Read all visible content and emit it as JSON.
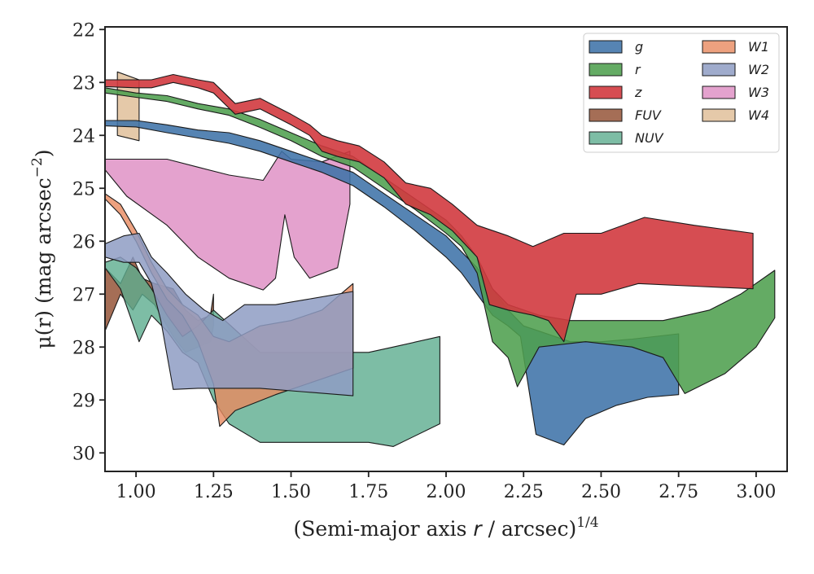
{
  "chart_data": {
    "type": "area",
    "title": "",
    "xlabel": "(Semi-major axis r / arcsec)",
    "xlabel_italic_part": "r",
    "xlabel_superscript": "1/4",
    "ylabel": "μ(r) (mag arcsec",
    "ylabel_superscript": "−2",
    "ylabel_suffix": ")",
    "xlim": [
      0.9,
      3.1
    ],
    "ylim": [
      30.35,
      21.95
    ],
    "y_inverted": true,
    "grid": false,
    "legend_position": "top-right",
    "legend_columns": 2,
    "xticks": [
      1.0,
      1.25,
      1.5,
      1.75,
      2.0,
      2.25,
      2.5,
      2.75,
      3.0
    ],
    "xtick_labels": [
      "1.00",
      "1.25",
      "1.50",
      "1.75",
      "2.00",
      "2.25",
      "2.50",
      "2.75",
      "3.00"
    ],
    "yticks": [
      22,
      23,
      24,
      25,
      26,
      27,
      28,
      29,
      30
    ],
    "ytick_labels": [
      "22",
      "23",
      "24",
      "25",
      "26",
      "27",
      "28",
      "29",
      "30"
    ],
    "series": [
      {
        "name": "FUV",
        "color": "#9b5e44",
        "opacity": 0.9,
        "upper": [
          [
            0.9,
            26.5
          ],
          [
            0.95,
            26.8
          ],
          [
            0.99,
            26.3
          ],
          [
            1.02,
            26.7
          ],
          [
            1.06,
            26.8
          ],
          [
            1.12,
            26.9
          ],
          [
            1.16,
            27.3
          ],
          [
            1.2,
            27.5
          ],
          [
            1.24,
            27.4
          ],
          [
            1.25,
            27.0
          ]
        ],
        "lower": [
          [
            0.9,
            27.7
          ],
          [
            0.95,
            27.0
          ],
          [
            0.99,
            27.3
          ],
          [
            1.02,
            27.0
          ],
          [
            1.06,
            27.2
          ],
          [
            1.12,
            27.8
          ],
          [
            1.16,
            28.1
          ],
          [
            1.2,
            28.0
          ],
          [
            1.24,
            27.9
          ],
          [
            1.25,
            27.6
          ]
        ]
      },
      {
        "name": "NUV",
        "color": "#5dad8f",
        "opacity": 0.8,
        "upper": [
          [
            0.9,
            26.4
          ],
          [
            0.95,
            26.3
          ],
          [
            1.0,
            26.5
          ],
          [
            1.05,
            26.9
          ],
          [
            1.1,
            27.4
          ],
          [
            1.15,
            27.8
          ],
          [
            1.2,
            27.6
          ],
          [
            1.25,
            27.3
          ],
          [
            1.4,
            28.1
          ],
          [
            1.5,
            28.1
          ],
          [
            1.6,
            28.1
          ],
          [
            1.75,
            28.1
          ],
          [
            1.83,
            28.0
          ],
          [
            1.98,
            27.8
          ]
        ],
        "lower": [
          [
            0.9,
            26.5
          ],
          [
            0.95,
            26.9
          ],
          [
            1.01,
            27.9
          ],
          [
            1.05,
            27.4
          ],
          [
            1.1,
            27.7
          ],
          [
            1.15,
            28.1
          ],
          [
            1.2,
            28.3
          ],
          [
            1.25,
            29.0
          ],
          [
            1.3,
            29.45
          ],
          [
            1.4,
            29.8
          ],
          [
            1.6,
            29.8
          ],
          [
            1.75,
            29.8
          ],
          [
            1.83,
            29.88
          ],
          [
            1.98,
            29.45
          ]
        ]
      },
      {
        "name": "W1",
        "color": "#e8895f",
        "opacity": 0.8,
        "upper": [
          [
            0.9,
            25.1
          ],
          [
            0.95,
            25.3
          ],
          [
            1.0,
            25.8
          ],
          [
            1.05,
            26.4
          ],
          [
            1.1,
            26.9
          ],
          [
            1.15,
            27.2
          ],
          [
            1.2,
            27.4
          ],
          [
            1.25,
            27.8
          ],
          [
            1.3,
            27.9
          ],
          [
            1.4,
            27.6
          ],
          [
            1.5,
            27.5
          ],
          [
            1.6,
            27.3
          ],
          [
            1.7,
            26.8
          ]
        ],
        "lower": [
          [
            0.9,
            25.2
          ],
          [
            0.95,
            25.5
          ],
          [
            1.0,
            26.0
          ],
          [
            1.05,
            26.6
          ],
          [
            1.1,
            27.1
          ],
          [
            1.15,
            27.4
          ],
          [
            1.2,
            27.9
          ],
          [
            1.25,
            28.7
          ],
          [
            1.27,
            29.5
          ],
          [
            1.32,
            29.2
          ],
          [
            1.45,
            28.9
          ],
          [
            1.6,
            28.6
          ],
          [
            1.7,
            28.4
          ]
        ]
      },
      {
        "name": "W2",
        "color": "#8e9cc3",
        "opacity": 0.85,
        "upper": [
          [
            0.9,
            26.05
          ],
          [
            0.96,
            25.9
          ],
          [
            1.01,
            25.85
          ],
          [
            1.05,
            26.3
          ],
          [
            1.1,
            26.6
          ],
          [
            1.16,
            27.0
          ],
          [
            1.22,
            27.3
          ],
          [
            1.28,
            27.5
          ],
          [
            1.35,
            27.2
          ],
          [
            1.45,
            27.2
          ],
          [
            1.55,
            27.1
          ],
          [
            1.7,
            26.95
          ]
        ],
        "lower": [
          [
            0.9,
            26.3
          ],
          [
            0.96,
            26.4
          ],
          [
            1.01,
            26.4
          ],
          [
            1.05,
            26.8
          ],
          [
            1.08,
            27.5
          ],
          [
            1.12,
            28.8
          ],
          [
            1.2,
            28.78
          ],
          [
            1.4,
            28.78
          ],
          [
            1.55,
            28.85
          ],
          [
            1.7,
            28.92
          ]
        ]
      },
      {
        "name": "W3",
        "color": "#dd8bc2",
        "opacity": 0.8,
        "upper": [
          [
            0.9,
            24.45
          ],
          [
            1.1,
            24.45
          ],
          [
            1.2,
            24.6
          ],
          [
            1.3,
            24.75
          ],
          [
            1.41,
            24.85
          ],
          [
            1.47,
            24.3
          ],
          [
            1.5,
            24.45
          ],
          [
            1.6,
            24.5
          ],
          [
            1.69,
            24.3
          ]
        ],
        "lower": [
          [
            0.9,
            24.65
          ],
          [
            0.97,
            25.15
          ],
          [
            1.1,
            25.7
          ],
          [
            1.2,
            26.3
          ],
          [
            1.3,
            26.7
          ],
          [
            1.41,
            26.92
          ],
          [
            1.45,
            26.7
          ],
          [
            1.48,
            25.5
          ],
          [
            1.51,
            26.3
          ],
          [
            1.56,
            26.7
          ],
          [
            1.65,
            26.5
          ],
          [
            1.69,
            25.3
          ]
        ]
      },
      {
        "name": "W4",
        "color": "#e0c09a",
        "opacity": 0.85,
        "upper": [
          [
            0.94,
            22.8
          ],
          [
            1.01,
            22.95
          ]
        ],
        "lower": [
          [
            0.94,
            24.0
          ],
          [
            1.01,
            24.1
          ]
        ]
      },
      {
        "name": "g",
        "color": "#3f73a8",
        "opacity": 0.88,
        "upper": [
          [
            0.9,
            23.72
          ],
          [
            1.0,
            23.72
          ],
          [
            1.1,
            23.8
          ],
          [
            1.2,
            23.9
          ],
          [
            1.3,
            23.95
          ],
          [
            1.4,
            24.1
          ],
          [
            1.5,
            24.3
          ],
          [
            1.6,
            24.5
          ],
          [
            1.7,
            24.7
          ],
          [
            1.8,
            25.1
          ],
          [
            1.9,
            25.5
          ],
          [
            2.0,
            25.9
          ],
          [
            2.05,
            26.2
          ],
          [
            2.1,
            26.5
          ],
          [
            2.15,
            26.9
          ],
          [
            2.2,
            27.3
          ],
          [
            2.25,
            27.6
          ],
          [
            2.3,
            27.7
          ],
          [
            2.4,
            27.9
          ],
          [
            2.5,
            27.9
          ],
          [
            2.6,
            27.85
          ],
          [
            2.75,
            27.75
          ]
        ],
        "lower": [
          [
            0.9,
            23.82
          ],
          [
            1.0,
            23.84
          ],
          [
            1.1,
            23.95
          ],
          [
            1.2,
            24.05
          ],
          [
            1.3,
            24.15
          ],
          [
            1.4,
            24.3
          ],
          [
            1.5,
            24.5
          ],
          [
            1.6,
            24.7
          ],
          [
            1.7,
            24.95
          ],
          [
            1.8,
            25.35
          ],
          [
            1.9,
            25.8
          ],
          [
            2.0,
            26.3
          ],
          [
            2.05,
            26.6
          ],
          [
            2.1,
            27.0
          ],
          [
            2.15,
            27.4
          ],
          [
            2.2,
            27.6
          ],
          [
            2.24,
            27.8
          ],
          [
            2.29,
            29.65
          ],
          [
            2.38,
            29.85
          ],
          [
            2.45,
            29.35
          ],
          [
            2.55,
            29.1
          ],
          [
            2.65,
            28.95
          ],
          [
            2.75,
            28.9
          ]
        ]
      },
      {
        "name": "r",
        "color": "#4e9f4e",
        "opacity": 0.88,
        "upper": [
          [
            0.9,
            23.1
          ],
          [
            1.0,
            23.2
          ],
          [
            1.1,
            23.25
          ],
          [
            1.2,
            23.4
          ],
          [
            1.3,
            23.5
          ],
          [
            1.4,
            23.7
          ],
          [
            1.5,
            23.95
          ],
          [
            1.6,
            24.2
          ],
          [
            1.7,
            24.4
          ],
          [
            1.8,
            24.8
          ],
          [
            1.9,
            25.2
          ],
          [
            2.0,
            25.6
          ],
          [
            2.05,
            25.9
          ],
          [
            2.1,
            26.3
          ],
          [
            2.15,
            26.9
          ],
          [
            2.2,
            27.2
          ],
          [
            2.3,
            27.4
          ],
          [
            2.4,
            27.5
          ],
          [
            2.55,
            27.5
          ],
          [
            2.7,
            27.5
          ],
          [
            2.85,
            27.3
          ],
          [
            2.95,
            27.0
          ],
          [
            3.06,
            26.55
          ]
        ],
        "lower": [
          [
            0.9,
            23.2
          ],
          [
            1.0,
            23.28
          ],
          [
            1.1,
            23.36
          ],
          [
            1.2,
            23.5
          ],
          [
            1.3,
            23.62
          ],
          [
            1.4,
            23.85
          ],
          [
            1.5,
            24.1
          ],
          [
            1.6,
            24.4
          ],
          [
            1.7,
            24.6
          ],
          [
            1.8,
            25.0
          ],
          [
            1.9,
            25.4
          ],
          [
            2.0,
            25.85
          ],
          [
            2.05,
            26.1
          ],
          [
            2.1,
            26.6
          ],
          [
            2.15,
            27.9
          ],
          [
            2.2,
            28.2
          ],
          [
            2.23,
            28.75
          ],
          [
            2.3,
            28.0
          ],
          [
            2.45,
            27.9
          ],
          [
            2.6,
            28.0
          ],
          [
            2.7,
            28.2
          ],
          [
            2.77,
            28.88
          ],
          [
            2.9,
            28.5
          ],
          [
            3.0,
            28.0
          ],
          [
            3.06,
            27.45
          ]
        ]
      },
      {
        "name": "z",
        "color": "#d23a3f",
        "opacity": 0.9,
        "upper": [
          [
            0.9,
            22.95
          ],
          [
            1.0,
            22.95
          ],
          [
            1.05,
            22.95
          ],
          [
            1.12,
            22.85
          ],
          [
            1.2,
            22.95
          ],
          [
            1.25,
            23.0
          ],
          [
            1.32,
            23.4
          ],
          [
            1.4,
            23.3
          ],
          [
            1.5,
            23.6
          ],
          [
            1.56,
            23.8
          ],
          [
            1.6,
            24.0
          ],
          [
            1.65,
            24.1
          ],
          [
            1.72,
            24.2
          ],
          [
            1.8,
            24.5
          ],
          [
            1.87,
            24.9
          ],
          [
            1.95,
            25.0
          ],
          [
            2.02,
            25.3
          ],
          [
            2.1,
            25.7
          ],
          [
            2.2,
            25.9
          ],
          [
            2.28,
            26.1
          ],
          [
            2.38,
            25.85
          ],
          [
            2.5,
            25.85
          ],
          [
            2.64,
            25.55
          ],
          [
            2.8,
            25.7
          ],
          [
            2.99,
            25.85
          ]
        ],
        "lower": [
          [
            0.9,
            23.08
          ],
          [
            1.0,
            23.1
          ],
          [
            1.05,
            23.1
          ],
          [
            1.12,
            23.0
          ],
          [
            1.2,
            23.1
          ],
          [
            1.25,
            23.2
          ],
          [
            1.32,
            23.6
          ],
          [
            1.4,
            23.5
          ],
          [
            1.5,
            23.8
          ],
          [
            1.56,
            24.0
          ],
          [
            1.6,
            24.3
          ],
          [
            1.65,
            24.4
          ],
          [
            1.72,
            24.5
          ],
          [
            1.8,
            24.8
          ],
          [
            1.87,
            25.3
          ],
          [
            1.95,
            25.5
          ],
          [
            2.02,
            25.8
          ],
          [
            2.1,
            26.3
          ],
          [
            2.14,
            27.2
          ],
          [
            2.2,
            27.3
          ],
          [
            2.28,
            27.4
          ],
          [
            2.33,
            27.5
          ],
          [
            2.38,
            27.9
          ],
          [
            2.42,
            27.0
          ],
          [
            2.5,
            27.0
          ],
          [
            2.62,
            26.8
          ],
          [
            2.8,
            26.85
          ],
          [
            2.99,
            26.9
          ]
        ]
      }
    ],
    "legend": [
      {
        "name": "g",
        "color": "#3f73a8"
      },
      {
        "name": "r",
        "color": "#4e9f4e"
      },
      {
        "name": "z",
        "color": "#d23a3f"
      },
      {
        "name": "FUV",
        "color": "#9b5e44"
      },
      {
        "name": "NUV",
        "color": "#5dad8f"
      },
      {
        "name": "W1",
        "color": "#e8895f"
      },
      {
        "name": "W2",
        "color": "#8e9cc3"
      },
      {
        "name": "W3",
        "color": "#dd8bc2"
      },
      {
        "name": "W4",
        "color": "#e0c09a"
      }
    ]
  }
}
